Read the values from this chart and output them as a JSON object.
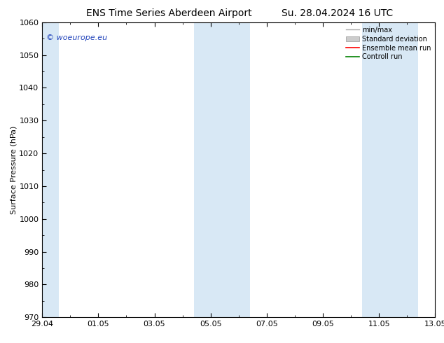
{
  "title_left": "ENS Time Series Aberdeen Airport",
  "title_right": "Su. 28.04.2024 16 UTC",
  "ylabel": "Surface Pressure (hPa)",
  "ylim": [
    970,
    1060
  ],
  "yticks": [
    970,
    980,
    990,
    1000,
    1010,
    1020,
    1030,
    1040,
    1050,
    1060
  ],
  "xlim": [
    0,
    14
  ],
  "xtick_labels": [
    "29.04",
    "01.05",
    "03.05",
    "05.05",
    "07.05",
    "09.05",
    "11.05",
    "13.05"
  ],
  "xtick_positions": [
    0,
    2,
    4,
    6,
    8,
    10,
    12,
    14
  ],
  "shaded_regions": [
    {
      "start": 0.0,
      "end": 0.6
    },
    {
      "start": 5.4,
      "end": 7.4
    },
    {
      "start": 11.4,
      "end": 13.4
    }
  ],
  "background_color": "#ffffff",
  "plot_bg_color": "#ffffff",
  "shaded_color": "#d8e8f5",
  "legend_labels": [
    "min/max",
    "Standard deviation",
    "Ensemble mean run",
    "Controll run"
  ],
  "legend_colors_line": [
    "#aaaaaa",
    "#cccccc",
    "#ff0000",
    "#008000"
  ],
  "watermark_text": "© woeurope.eu",
  "watermark_color": "#2244bb",
  "title_fontsize": 10,
  "axis_label_fontsize": 8,
  "tick_fontsize": 8
}
